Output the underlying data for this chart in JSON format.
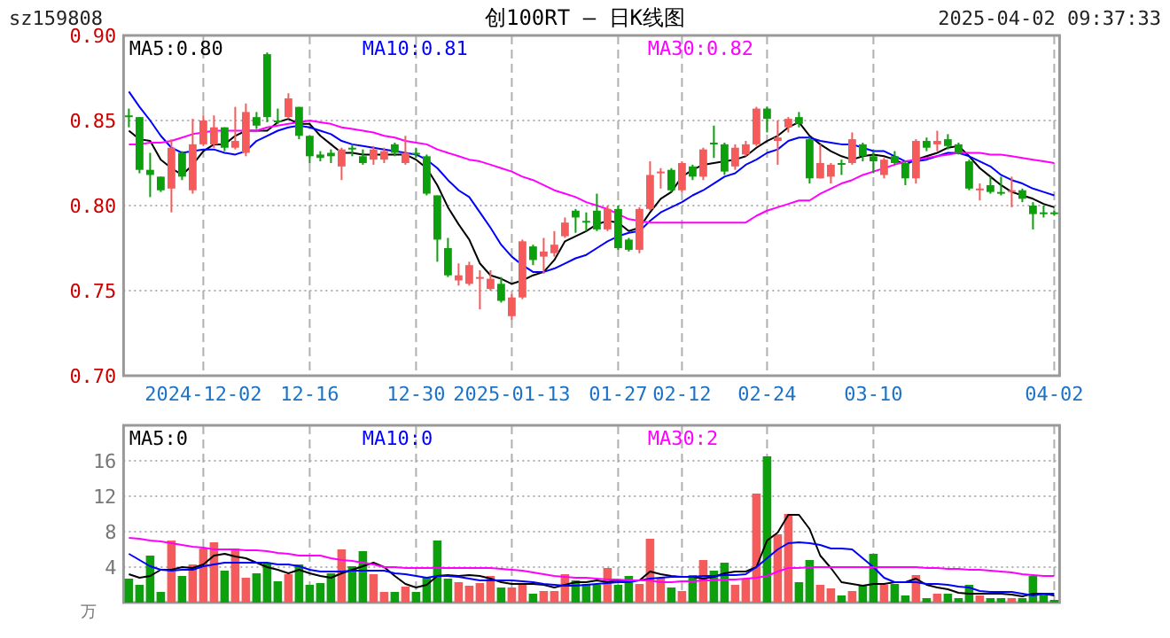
{
  "chart_data": [
    {
      "type": "candlestick",
      "title": "创100RT — 日K线图",
      "annotations": [
        "sz159808",
        "2025-04-02 09:37:33"
      ],
      "categories": [
        null,
        null,
        null,
        null,
        null,
        null,
        null,
        "2024-12-02",
        null,
        null,
        null,
        null,
        null,
        null,
        null,
        null,
        null,
        "12-16",
        null,
        null,
        null,
        null,
        null,
        null,
        null,
        null,
        null,
        "12-30",
        null,
        null,
        null,
        null,
        null,
        null,
        null,
        null,
        "2025-01-13",
        null,
        null,
        null,
        null,
        null,
        null,
        null,
        null,
        null,
        "01-27",
        null,
        null,
        null,
        null,
        null,
        "02-12",
        null,
        null,
        null,
        null,
        null,
        null,
        null,
        "02-24",
        null,
        null,
        null,
        null,
        null,
        null,
        null,
        null,
        null,
        "03-10",
        null,
        null,
        null,
        null,
        null,
        null,
        null,
        null,
        null,
        null,
        null,
        null,
        null,
        null,
        null,
        null,
        "04-02"
      ],
      "ohlc": [
        [
          0.853,
          0.857,
          0.846,
          0.852
        ],
        [
          0.852,
          0.852,
          0.819,
          0.821
        ],
        [
          0.821,
          0.831,
          0.805,
          0.818
        ],
        [
          0.817,
          0.817,
          0.808,
          0.809
        ],
        [
          0.81,
          0.839,
          0.796,
          0.834
        ],
        [
          0.831,
          0.832,
          0.815,
          0.817
        ],
        [
          0.809,
          0.851,
          0.807,
          0.836
        ],
        [
          0.836,
          0.853,
          0.835,
          0.85
        ],
        [
          0.836,
          0.853,
          0.834,
          0.846
        ],
        [
          0.846,
          0.846,
          0.832,
          0.834
        ],
        [
          0.834,
          0.858,
          0.833,
          0.838
        ],
        [
          0.831,
          0.86,
          0.829,
          0.855
        ],
        [
          0.852,
          0.855,
          0.845,
          0.847
        ],
        [
          0.889,
          0.89,
          0.849,
          0.852
        ],
        [
          0.85,
          0.857,
          0.848,
          0.849
        ],
        [
          0.852,
          0.866,
          0.851,
          0.863
        ],
        [
          0.858,
          0.858,
          0.839,
          0.841
        ],
        [
          0.841,
          0.841,
          0.825,
          0.829
        ],
        [
          0.83,
          0.832,
          0.826,
          0.828
        ],
        [
          0.831,
          0.833,
          0.825,
          0.829
        ],
        [
          0.823,
          0.834,
          0.815,
          0.833
        ],
        [
          0.834,
          0.836,
          0.829,
          0.833
        ],
        [
          0.829,
          0.833,
          0.824,
          0.825
        ],
        [
          0.827,
          0.835,
          0.824,
          0.833
        ],
        [
          0.827,
          0.834,
          0.825,
          0.832
        ],
        [
          0.836,
          0.837,
          0.829,
          0.831
        ],
        [
          0.825,
          0.841,
          0.824,
          0.831
        ],
        [
          0.831,
          0.834,
          0.828,
          0.83
        ],
        [
          0.829,
          0.83,
          0.806,
          0.807
        ],
        [
          0.806,
          0.806,
          0.767,
          0.78
        ],
        [
          0.775,
          0.781,
          0.758,
          0.759
        ],
        [
          0.756,
          0.766,
          0.753,
          0.759
        ],
        [
          0.754,
          0.767,
          0.753,
          0.765
        ],
        [
          0.757,
          0.762,
          0.739,
          0.758
        ],
        [
          0.751,
          0.762,
          0.75,
          0.757
        ],
        [
          0.754,
          0.758,
          0.743,
          0.744
        ],
        [
          0.735,
          0.748,
          0.733,
          0.746
        ],
        [
          0.746,
          0.78,
          0.745,
          0.779
        ],
        [
          0.776,
          0.777,
          0.765,
          0.768
        ],
        [
          0.77,
          0.781,
          0.76,
          0.773
        ],
        [
          0.772,
          0.785,
          0.77,
          0.777
        ],
        [
          0.782,
          0.793,
          0.781,
          0.79
        ],
        [
          0.797,
          0.798,
          0.784,
          0.793
        ],
        [
          0.791,
          0.796,
          0.785,
          0.79
        ],
        [
          0.797,
          0.807,
          0.785,
          0.786
        ],
        [
          0.786,
          0.8,
          0.785,
          0.798
        ],
        [
          0.798,
          0.8,
          0.774,
          0.775
        ],
        [
          0.78,
          0.781,
          0.773,
          0.774
        ],
        [
          0.774,
          0.799,
          0.772,
          0.798
        ],
        [
          0.798,
          0.826,
          0.797,
          0.818
        ],
        [
          0.819,
          0.822,
          0.81,
          0.82
        ],
        [
          0.821,
          0.822,
          0.808,
          0.809
        ],
        [
          0.809,
          0.826,
          0.808,
          0.825
        ],
        [
          0.823,
          0.824,
          0.815,
          0.817
        ],
        [
          0.817,
          0.834,
          0.815,
          0.833
        ],
        [
          0.837,
          0.847,
          0.828,
          0.836
        ],
        [
          0.836,
          0.837,
          0.818,
          0.82
        ],
        [
          0.823,
          0.836,
          0.821,
          0.834
        ],
        [
          0.83,
          0.838,
          0.829,
          0.836
        ],
        [
          0.836,
          0.858,
          0.835,
          0.857
        ],
        [
          0.857,
          0.858,
          0.843,
          0.851
        ],
        [
          0.838,
          0.85,
          0.824,
          0.84
        ],
        [
          0.846,
          0.852,
          0.843,
          0.851
        ],
        [
          0.852,
          0.855,
          0.846,
          0.848
        ],
        [
          0.839,
          0.84,
          0.813,
          0.816
        ],
        [
          0.816,
          0.836,
          0.816,
          0.825
        ],
        [
          0.817,
          0.825,
          0.813,
          0.824
        ],
        [
          0.825,
          0.827,
          0.818,
          0.824
        ],
        [
          0.825,
          0.843,
          0.824,
          0.839
        ],
        [
          0.836,
          0.837,
          0.826,
          0.829
        ],
        [
          0.829,
          0.832,
          0.819,
          0.826
        ],
        [
          0.818,
          0.828,
          0.816,
          0.827
        ],
        [
          0.829,
          0.832,
          0.824,
          0.825
        ],
        [
          0.825,
          0.826,
          0.812,
          0.816
        ],
        [
          0.816,
          0.839,
          0.813,
          0.838
        ],
        [
          0.838,
          0.84,
          0.832,
          0.834
        ],
        [
          0.836,
          0.844,
          0.832,
          0.838
        ],
        [
          0.839,
          0.842,
          0.833,
          0.835
        ],
        [
          0.836,
          0.837,
          0.83,
          0.831
        ],
        [
          0.826,
          0.827,
          0.809,
          0.81
        ],
        [
          0.809,
          0.813,
          0.803,
          0.81
        ],
        [
          0.812,
          0.817,
          0.807,
          0.808
        ],
        [
          0.808,
          0.817,
          0.806,
          0.807
        ],
        [
          0.808,
          0.817,
          0.799,
          0.809
        ],
        [
          0.809,
          0.81,
          0.802,
          0.804
        ],
        [
          0.8,
          0.802,
          0.786,
          0.795
        ],
        [
          0.796,
          0.8,
          0.793,
          0.795
        ],
        [
          0.796,
          0.797,
          0.794,
          0.795
        ]
      ],
      "colors": [
        "#0ca00c",
        "#0ca00c",
        "#0ca00c",
        "#0ca00c",
        "#f65b5b",
        "#0ca00c",
        "#f65b5b",
        "#f65b5b",
        "#f65b5b",
        "#0ca00c",
        "#f65b5b",
        "#f65b5b",
        "#0ca00c",
        "#0ca00c",
        "#0ca00c",
        "#f65b5b",
        "#0ca00c",
        "#0ca00c",
        "#0ca00c",
        "#0ca00c",
        "#f65b5b",
        "#0ca00c",
        "#0ca00c",
        "#f65b5b",
        "#f65b5b",
        "#0ca00c",
        "#f65b5b",
        "#0ca00c",
        "#0ca00c",
        "#0ca00c",
        "#0ca00c",
        "#f65b5b",
        "#f65b5b",
        "#f65b5b",
        "#f65b5b",
        "#0ca00c",
        "#f65b5b",
        "#f65b5b",
        "#0ca00c",
        "#f65b5b",
        "#f65b5b",
        "#f65b5b",
        "#0ca00c",
        "#0ca00c",
        "#0ca00c",
        "#f65b5b",
        "#0ca00c",
        "#0ca00c",
        "#f65b5b",
        "#f65b5b",
        "#f65b5b",
        "#0ca00c",
        "#f65b5b",
        "#0ca00c",
        "#f65b5b",
        "#0ca00c",
        "#0ca00c",
        "#f65b5b",
        "#f65b5b",
        "#f65b5b",
        "#0ca00c",
        "#f65b5b",
        "#f65b5b",
        "#0ca00c",
        "#0ca00c",
        "#f65b5b",
        "#f65b5b",
        "#0ca00c",
        "#f65b5b",
        "#0ca00c",
        "#0ca00c",
        "#f65b5b",
        "#0ca00c",
        "#0ca00c",
        "#f65b5b",
        "#0ca00c",
        "#f65b5b",
        "#0ca00c",
        "#0ca00c",
        "#0ca00c",
        "#f65b5b",
        "#0ca00c",
        "#0ca00c",
        "#f65b5b",
        "#0ca00c",
        "#0ca00c",
        "#0ca00c",
        "#0ca00c"
      ],
      "series": [
        {
          "name": "MA5:0.80",
          "type": "line",
          "color": "#000000",
          "values": [
            0.844,
            0.839,
            0.838,
            0.827,
            0.822,
            0.818,
            0.824,
            0.832,
            0.836,
            0.836,
            0.841,
            0.844,
            0.844,
            0.844,
            0.849,
            0.851,
            0.848,
            0.848,
            0.841,
            0.836,
            0.831,
            0.831,
            0.83,
            0.83,
            0.83,
            0.83,
            0.83,
            0.827,
            0.822,
            0.812,
            0.799,
            0.789,
            0.78,
            0.766,
            0.759,
            0.757,
            0.754,
            0.756,
            0.759,
            0.761,
            0.768,
            0.779,
            0.782,
            0.785,
            0.789,
            0.791,
            0.79,
            0.785,
            0.787,
            0.796,
            0.804,
            0.808,
            0.817,
            0.821,
            0.824,
            0.825,
            0.826,
            0.827,
            0.829,
            0.834,
            0.838,
            0.841,
            0.846,
            0.849,
            0.841,
            0.836,
            0.832,
            0.829,
            0.827,
            0.829,
            0.83,
            0.829,
            0.827,
            0.824,
            0.827,
            0.829,
            0.831,
            0.834,
            0.835,
            0.829,
            0.822,
            0.817,
            0.812,
            0.808,
            0.806,
            0.804,
            0.801,
            0.799
          ]
        },
        {
          "name": "MA10:0.81",
          "type": "line",
          "color": "#0000ff",
          "values": [
            0.867,
            0.858,
            0.85,
            0.841,
            0.834,
            0.831,
            0.832,
            0.833,
            0.833,
            0.831,
            0.83,
            0.832,
            0.838,
            0.841,
            0.844,
            0.846,
            0.847,
            0.846,
            0.844,
            0.842,
            0.838,
            0.836,
            0.835,
            0.834,
            0.833,
            0.832,
            0.831,
            0.83,
            0.827,
            0.822,
            0.815,
            0.809,
            0.805,
            0.796,
            0.787,
            0.777,
            0.77,
            0.765,
            0.761,
            0.761,
            0.763,
            0.766,
            0.769,
            0.771,
            0.775,
            0.779,
            0.782,
            0.784,
            0.785,
            0.791,
            0.796,
            0.799,
            0.802,
            0.806,
            0.809,
            0.813,
            0.817,
            0.819,
            0.824,
            0.827,
            0.831,
            0.833,
            0.838,
            0.84,
            0.84,
            0.838,
            0.837,
            0.836,
            0.836,
            0.834,
            0.832,
            0.832,
            0.829,
            0.826,
            0.826,
            0.827,
            0.829,
            0.831,
            0.831,
            0.829,
            0.826,
            0.823,
            0.818,
            0.815,
            0.813,
            0.81,
            0.808,
            0.806
          ]
        },
        {
          "name": "MA30:0.82",
          "type": "line",
          "color": "#ff00ff",
          "values": [
            0.836,
            0.836,
            0.837,
            0.837,
            0.838,
            0.84,
            0.842,
            0.843,
            0.844,
            0.844,
            0.844,
            0.844,
            0.844,
            0.846,
            0.847,
            0.848,
            0.849,
            0.85,
            0.849,
            0.848,
            0.846,
            0.845,
            0.844,
            0.843,
            0.841,
            0.84,
            0.838,
            0.837,
            0.836,
            0.833,
            0.831,
            0.829,
            0.827,
            0.826,
            0.824,
            0.822,
            0.82,
            0.817,
            0.815,
            0.812,
            0.809,
            0.807,
            0.805,
            0.802,
            0.8,
            0.798,
            0.795,
            0.792,
            0.791,
            0.79,
            0.79,
            0.79,
            0.79,
            0.79,
            0.79,
            0.79,
            0.79,
            0.79,
            0.79,
            0.794,
            0.797,
            0.799,
            0.801,
            0.803,
            0.803,
            0.807,
            0.81,
            0.813,
            0.815,
            0.818,
            0.82,
            0.822,
            0.824,
            0.826,
            0.827,
            0.828,
            0.829,
            0.83,
            0.831,
            0.831,
            0.831,
            0.83,
            0.83,
            0.829,
            0.828,
            0.827,
            0.826,
            0.825
          ]
        }
      ],
      "ylim": [
        0.7,
        0.9
      ],
      "yticks": [
        {
          "value": 0.7,
          "label": "0.70"
        },
        {
          "value": 0.75,
          "label": "0.75"
        },
        {
          "value": 0.8,
          "label": "0.80"
        },
        {
          "value": 0.85,
          "label": "0.85"
        },
        {
          "value": 0.9,
          "label": "0.90"
        }
      ],
      "grid": true,
      "legend": "top"
    },
    {
      "type": "bar",
      "ylabel": "万",
      "categories": [
        null,
        null,
        null,
        null,
        null,
        null,
        null,
        null,
        null,
        null,
        null,
        null,
        null,
        null,
        null,
        null,
        null,
        null,
        null,
        null,
        null,
        null,
        null,
        null,
        null,
        null,
        null,
        null,
        null,
        null,
        null,
        null,
        null,
        null,
        null,
        null,
        null,
        null,
        null,
        null,
        null,
        null,
        null,
        null,
        null,
        null,
        null,
        null,
        null,
        null,
        null,
        null,
        null,
        null,
        null,
        null,
        null,
        null,
        null,
        null,
        null,
        null,
        null,
        null,
        null,
        null,
        null,
        null,
        null,
        null,
        null,
        null,
        null,
        null,
        null,
        null,
        null,
        null,
        null,
        null,
        null,
        null,
        null,
        null,
        null,
        null,
        null,
        null
      ],
      "series": [
        {
          "type": "bar",
          "values": [
            2.7,
            2.0,
            5.3,
            1.2,
            7.0,
            3.0,
            4.3,
            6.1,
            6.8,
            3.6,
            6.1,
            2.8,
            3.3,
            4.5,
            2.4,
            3.2,
            4.3,
            2.0,
            2.2,
            3.3,
            6.0,
            4.1,
            5.8,
            3.2,
            1.2,
            1.2,
            1.8,
            1.2,
            2.8,
            7.0,
            2.7,
            2.3,
            1.9,
            2.2,
            3.0,
            1.7,
            1.7,
            2.1,
            1.0,
            1.3,
            1.3,
            3.2,
            2.5,
            2.1,
            2.0,
            3.9,
            2.0,
            3.0,
            2.1,
            7.2,
            2.8,
            1.7,
            1.3,
            3.1,
            4.8,
            3.6,
            4.5,
            2.0,
            2.7,
            12.3,
            16.5,
            7.7,
            10.0,
            2.3,
            4.8,
            2.0,
            1.6,
            0.8,
            1.3,
            2.0,
            5.5,
            2.0,
            2.1,
            0.8,
            3.1,
            0.5,
            1.0,
            1.0,
            0.5,
            2.0,
            0.8,
            0.5,
            0.5,
            0.5,
            0.5,
            3.0,
            0.9,
            0.3
          ],
          "colors": [
            "#0ca00c",
            "#0ca00c",
            "#0ca00c",
            "#0ca00c",
            "#f65b5b",
            "#0ca00c",
            "#f65b5b",
            "#f65b5b",
            "#f65b5b",
            "#0ca00c",
            "#f65b5b",
            "#f65b5b",
            "#0ca00c",
            "#0ca00c",
            "#0ca00c",
            "#f65b5b",
            "#0ca00c",
            "#0ca00c",
            "#0ca00c",
            "#0ca00c",
            "#f65b5b",
            "#0ca00c",
            "#0ca00c",
            "#f65b5b",
            "#f65b5b",
            "#0ca00c",
            "#f65b5b",
            "#0ca00c",
            "#0ca00c",
            "#0ca00c",
            "#0ca00c",
            "#f65b5b",
            "#f65b5b",
            "#f65b5b",
            "#f65b5b",
            "#0ca00c",
            "#f65b5b",
            "#f65b5b",
            "#0ca00c",
            "#f65b5b",
            "#f65b5b",
            "#f65b5b",
            "#0ca00c",
            "#0ca00c",
            "#0ca00c",
            "#f65b5b",
            "#0ca00c",
            "#0ca00c",
            "#f65b5b",
            "#f65b5b",
            "#f65b5b",
            "#0ca00c",
            "#f65b5b",
            "#0ca00c",
            "#f65b5b",
            "#0ca00c",
            "#0ca00c",
            "#f65b5b",
            "#f65b5b",
            "#f65b5b",
            "#0ca00c",
            "#f65b5b",
            "#f65b5b",
            "#0ca00c",
            "#0ca00c",
            "#f65b5b",
            "#f65b5b",
            "#0ca00c",
            "#f65b5b",
            "#0ca00c",
            "#0ca00c",
            "#f65b5b",
            "#0ca00c",
            "#0ca00c",
            "#f65b5b",
            "#0ca00c",
            "#f65b5b",
            "#0ca00c",
            "#0ca00c",
            "#0ca00c",
            "#f65b5b",
            "#0ca00c",
            "#0ca00c",
            "#f65b5b",
            "#0ca00c",
            "#0ca00c",
            "#0ca00c",
            "#0ca00c"
          ]
        },
        {
          "name": "MA5:0",
          "type": "line",
          "color": "#000000",
          "values": [
            3.2,
            2.8,
            3.0,
            3.7,
            3.7,
            4.0,
            3.9,
            4.3,
            5.3,
            5.5,
            5.2,
            5.0,
            4.5,
            4.0,
            3.7,
            3.3,
            3.7,
            3.3,
            3.0,
            2.8,
            3.3,
            3.7,
            4.1,
            4.5,
            4.0,
            3.0,
            2.1,
            1.7,
            2.0,
            3.0,
            3.1,
            3.0,
            3.1,
            3.0,
            2.7,
            2.3,
            2.1,
            2.1,
            2.1,
            2.0,
            1.7,
            2.0,
            2.3,
            2.3,
            2.5,
            2.3,
            2.5,
            2.5,
            2.5,
            3.5,
            3.2,
            3.0,
            2.9,
            2.9,
            2.7,
            2.9,
            3.3,
            3.5,
            3.5,
            4.0,
            7.0,
            7.9,
            9.9,
            9.9,
            8.3,
            5.3,
            3.9,
            2.3,
            2.1,
            1.9,
            2.1,
            2.1,
            2.3,
            2.3,
            2.7,
            2.0,
            1.7,
            1.5,
            1.1,
            1.0,
            1.0,
            1.0,
            1.0,
            0.9,
            0.7,
            1.0,
            1.0,
            0.8
          ]
        },
        {
          "name": "MA10:0",
          "type": "line",
          "color": "#0000ff",
          "values": [
            5.5,
            4.8,
            4.1,
            3.7,
            3.6,
            3.7,
            3.7,
            4.1,
            4.3,
            4.5,
            4.5,
            4.5,
            4.5,
            4.5,
            4.3,
            4.3,
            4.1,
            3.7,
            3.5,
            3.5,
            3.5,
            3.6,
            3.6,
            3.6,
            3.6,
            3.3,
            3.2,
            3.0,
            2.8,
            3.0,
            3.0,
            2.9,
            2.7,
            2.5,
            2.5,
            2.5,
            2.5,
            2.4,
            2.3,
            2.1,
            2.0,
            1.9,
            1.9,
            2.0,
            2.1,
            2.2,
            2.3,
            2.3,
            2.5,
            2.7,
            2.8,
            2.9,
            2.9,
            2.9,
            3.0,
            3.0,
            3.1,
            3.1,
            3.2,
            4.0,
            5.0,
            6.0,
            6.7,
            6.8,
            6.7,
            6.5,
            6.1,
            6.1,
            6.0,
            5.0,
            4.0,
            2.8,
            2.3,
            2.3,
            2.3,
            2.1,
            2.1,
            2.0,
            1.8,
            1.7,
            1.3,
            1.2,
            1.2,
            1.2,
            1.0,
            0.8,
            1.0,
            1.0
          ]
        },
        {
          "name": "MA30:2",
          "type": "line",
          "color": "#ff00ff",
          "values": [
            7.3,
            7.2,
            7.0,
            6.9,
            6.7,
            6.5,
            6.3,
            6.2,
            6.0,
            6.0,
            6.0,
            5.9,
            5.9,
            5.8,
            5.6,
            5.5,
            5.3,
            5.3,
            5.3,
            5.0,
            4.8,
            4.7,
            4.5,
            4.3,
            4.0,
            4.0,
            3.9,
            3.9,
            3.9,
            3.9,
            3.9,
            3.9,
            3.9,
            3.9,
            3.9,
            3.8,
            3.7,
            3.6,
            3.4,
            3.2,
            3.0,
            2.9,
            2.8,
            2.8,
            2.7,
            2.6,
            2.6,
            2.5,
            2.5,
            2.5,
            2.3,
            2.3,
            2.4,
            2.4,
            2.5,
            2.5,
            2.6,
            2.6,
            2.7,
            2.8,
            3.0,
            3.5,
            3.9,
            3.9,
            4.0,
            4.0,
            4.0,
            4.0,
            4.0,
            4.0,
            4.0,
            4.0,
            4.0,
            4.0,
            4.0,
            3.9,
            3.9,
            3.8,
            3.8,
            3.7,
            3.7,
            3.6,
            3.5,
            3.4,
            3.2,
            3.1,
            3.0,
            3.0
          ]
        }
      ],
      "ylim": [
        0,
        20
      ],
      "yticks": [
        4,
        8,
        12,
        16
      ],
      "grid": true,
      "legend": "top",
      "tick_labels": "y"
    }
  ]
}
